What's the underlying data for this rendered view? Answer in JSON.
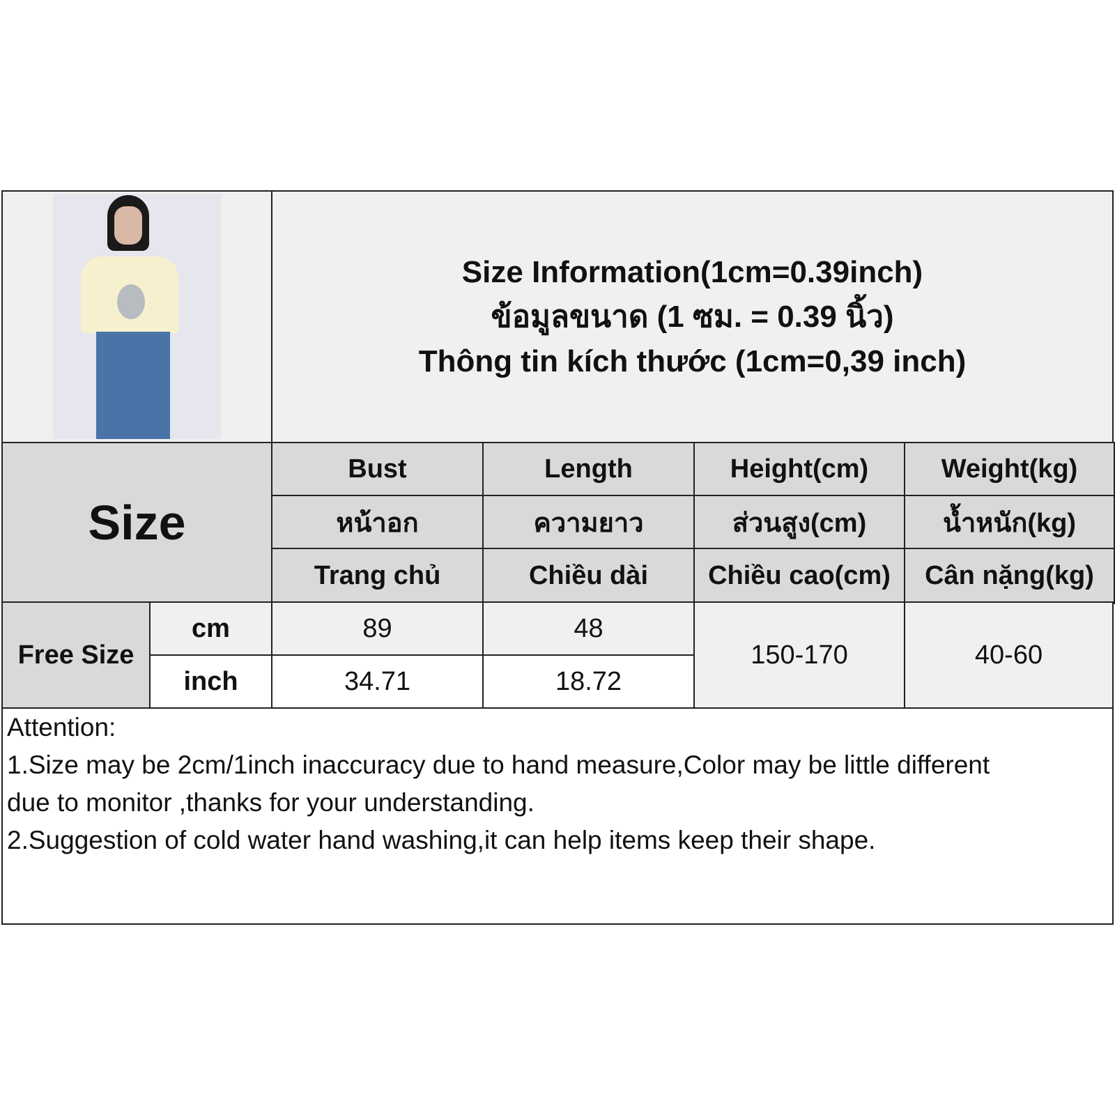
{
  "title": {
    "line1": "Size Information(1cm=0.39inch)",
    "line2": "ข้อมูลขนาด (1 ซม. = 0.39 นิ้ว)",
    "line3": "Thông tin kích thước (1cm=0,39 inch)"
  },
  "size_label": "Size",
  "columns": [
    {
      "en": "Bust",
      "th": "หน้าอก",
      "vi": "Trang chủ"
    },
    {
      "en": "Length",
      "th": "ความยาว",
      "vi": "Chiều dài"
    },
    {
      "en": "Height(cm)",
      "th": "ส่วนสูง(cm)",
      "vi": "Chiều cao(cm)"
    },
    {
      "en": "Weight(kg)",
      "th": "น้ำหนัก(kg)",
      "vi": "Cân nặng(kg)"
    }
  ],
  "row": {
    "name": "Free Size",
    "unit_cm": "cm",
    "unit_inch": "inch",
    "bust_cm": "89",
    "length_cm": "48",
    "bust_inch": "34.71",
    "length_inch": "18.72",
    "height": "150-170",
    "weight": "40-60"
  },
  "notes": {
    "heading": "Attention:",
    "line1": "1.Size may be 2cm/1inch inaccuracy due to hand measure,Color may be little different",
    "line2": "due to monitor ,thanks for your understanding.",
    "line3": "2.Suggestion of cold water hand washing,it can help items keep their shape."
  }
}
